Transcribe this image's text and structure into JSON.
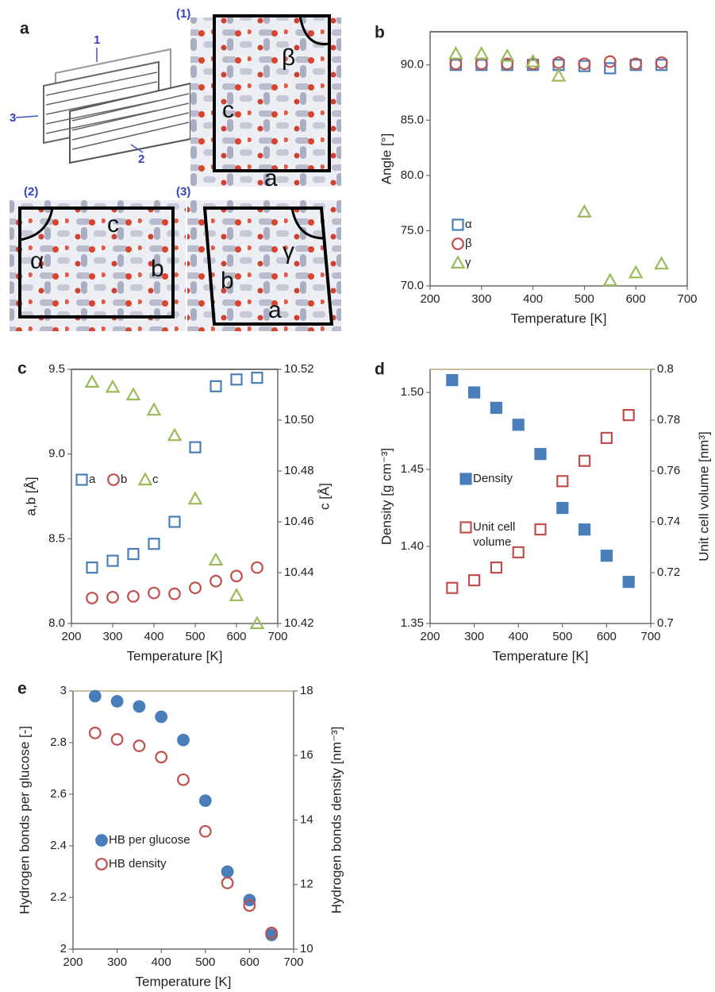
{
  "panel_labels": [
    "a",
    "b",
    "c",
    "d",
    "e"
  ],
  "structure": {
    "schematic_numbers": [
      "1",
      "2",
      "3"
    ],
    "views": [
      {
        "tag": "(1)",
        "labels": [
          "c",
          "β",
          "a"
        ]
      },
      {
        "tag": "(2)",
        "labels": [
          "α",
          "c",
          "b"
        ]
      },
      {
        "tag": "(3)",
        "labels": [
          "b",
          "γ",
          "a"
        ]
      }
    ]
  },
  "chart_data": [
    {
      "type": "scatter",
      "xlabel": "Temperature [K]",
      "ylabel": "Angle [°]",
      "x": [
        250,
        300,
        350,
        400,
        450,
        500,
        550,
        600,
        650
      ],
      "xlim": [
        200,
        700
      ],
      "xticks": [
        200,
        300,
        400,
        500,
        600,
        700
      ],
      "ylim": [
        70,
        93
      ],
      "yticks": [
        {
          "value": 70,
          "label": "70.0"
        },
        {
          "value": 75,
          "label": "75.0"
        },
        {
          "value": 80,
          "label": "80.0"
        },
        {
          "value": 85,
          "label": "85.0"
        },
        {
          "value": 90,
          "label": "90.0"
        }
      ],
      "legend": "lower left",
      "series": [
        {
          "name": "α",
          "color": "#4a7ebb",
          "marker": "square",
          "filled": false,
          "values": [
            90,
            90,
            90,
            90,
            90,
            89.9,
            89.7,
            90,
            90
          ]
        },
        {
          "name": "β",
          "color": "#c0504d",
          "marker": "circle",
          "filled": false,
          "values": [
            90.1,
            90.1,
            90.1,
            90.1,
            90.2,
            90.1,
            90.3,
            90.1,
            90.2
          ]
        },
        {
          "name": "γ",
          "color": "#9bbb59",
          "marker": "triangle",
          "filled": false,
          "values": [
            91,
            91,
            90.8,
            90.3,
            89,
            76.7,
            70.5,
            71.2,
            72
          ]
        }
      ]
    },
    {
      "type": "scatter",
      "xlabel": "Temperature [K]",
      "ylabel": "a,b [Å]",
      "y2label": "c [Å]",
      "x": [
        250,
        300,
        350,
        400,
        450,
        500,
        550,
        600,
        650
      ],
      "xlim": [
        200,
        700
      ],
      "xticks": [
        200,
        300,
        400,
        500,
        600,
        700
      ],
      "ylim": [
        8.0,
        9.5
      ],
      "yticks": [
        {
          "value": 8,
          "label": "8.0"
        },
        8.5,
        {
          "value": 9,
          "label": "9.0"
        },
        9.5
      ],
      "y2lim": [
        10.42,
        10.52
      ],
      "y2ticks": [
        10.42,
        10.44,
        10.46,
        10.48,
        {
          "value": 10.5,
          "label": "10.50"
        },
        10.52
      ],
      "legend": "center left",
      "series": [
        {
          "name": "a",
          "color": "#4a7ebb",
          "marker": "square",
          "filled": false,
          "values": [
            8.33,
            8.37,
            8.41,
            8.47,
            8.6,
            9.04,
            9.4,
            9.44,
            9.45
          ]
        },
        {
          "name": "b",
          "color": "#c0504d",
          "marker": "circle",
          "filled": false,
          "values": [
            8.15,
            8.155,
            8.16,
            8.18,
            8.175,
            8.21,
            8.25,
            8.28,
            8.33
          ]
        },
        {
          "name": "c",
          "color": "#9bbb59",
          "marker": "triangle",
          "filled": false,
          "axis": "y2",
          "values": [
            10.515,
            10.513,
            10.51,
            10.504,
            10.494,
            10.469,
            10.445,
            10.431,
            10.42
          ]
        }
      ]
    },
    {
      "type": "scatter",
      "xlabel": "Temperature [K]",
      "ylabel": "Density [g cm⁻³]",
      "y2label": "Unit cell volume [nm³]",
      "x": [
        250,
        300,
        350,
        400,
        450,
        500,
        550,
        600,
        650
      ],
      "xlim": [
        200,
        700
      ],
      "xticks": [
        200,
        300,
        400,
        500,
        600,
        700
      ],
      "ylim": [
        1.35,
        1.515
      ],
      "yticks": [
        1.35,
        {
          "value": 1.4,
          "label": "1.40"
        },
        1.45,
        {
          "value": 1.5,
          "label": "1.50"
        }
      ],
      "y2lim": [
        0.7,
        0.8
      ],
      "y2ticks": [
        0.7,
        0.72,
        0.74,
        0.76,
        0.78,
        0.8
      ],
      "legend": "center left",
      "series": [
        {
          "name": "Density",
          "color": "#4a7ebb",
          "marker": "square",
          "filled": true,
          "values": [
            1.508,
            1.5,
            1.49,
            1.479,
            1.46,
            1.425,
            1.411,
            1.394,
            1.377
          ]
        },
        {
          "name": "Unit cell volume",
          "color": "#c0504d",
          "marker": "square",
          "filled": false,
          "axis": "y2",
          "values": [
            0.714,
            0.717,
            0.722,
            0.728,
            0.737,
            0.756,
            0.764,
            0.773,
            0.782
          ]
        }
      ]
    },
    {
      "type": "scatter",
      "xlabel": "Temperature [K]",
      "ylabel": "Hydrogen bonds per glucose [-]",
      "y2label": "Hydrogen bonds density [nm⁻³]",
      "x": [
        250,
        300,
        350,
        400,
        450,
        500,
        550,
        600,
        650
      ],
      "xlim": [
        200,
        700
      ],
      "xticks": [
        200,
        300,
        400,
        500,
        600,
        700
      ],
      "ylim": [
        2,
        3
      ],
      "yticks": [
        2,
        2.2,
        2.4,
        2.6,
        2.8,
        3
      ],
      "y2lim": [
        10,
        18
      ],
      "y2ticks": [
        10,
        12,
        14,
        16,
        18
      ],
      "legend": "lower left",
      "series": [
        {
          "name": "HB per glucose",
          "color": "#4a7ebb",
          "marker": "circle",
          "filled": true,
          "values": [
            2.98,
            2.96,
            2.94,
            2.9,
            2.81,
            2.575,
            2.3,
            2.19,
            2.055
          ]
        },
        {
          "name": "HB density",
          "color": "#c0504d",
          "marker": "circle",
          "filled": false,
          "axis": "y2",
          "values": [
            16.7,
            16.5,
            16.3,
            15.95,
            15.25,
            13.65,
            12.05,
            11.35,
            10.5
          ]
        }
      ]
    }
  ]
}
